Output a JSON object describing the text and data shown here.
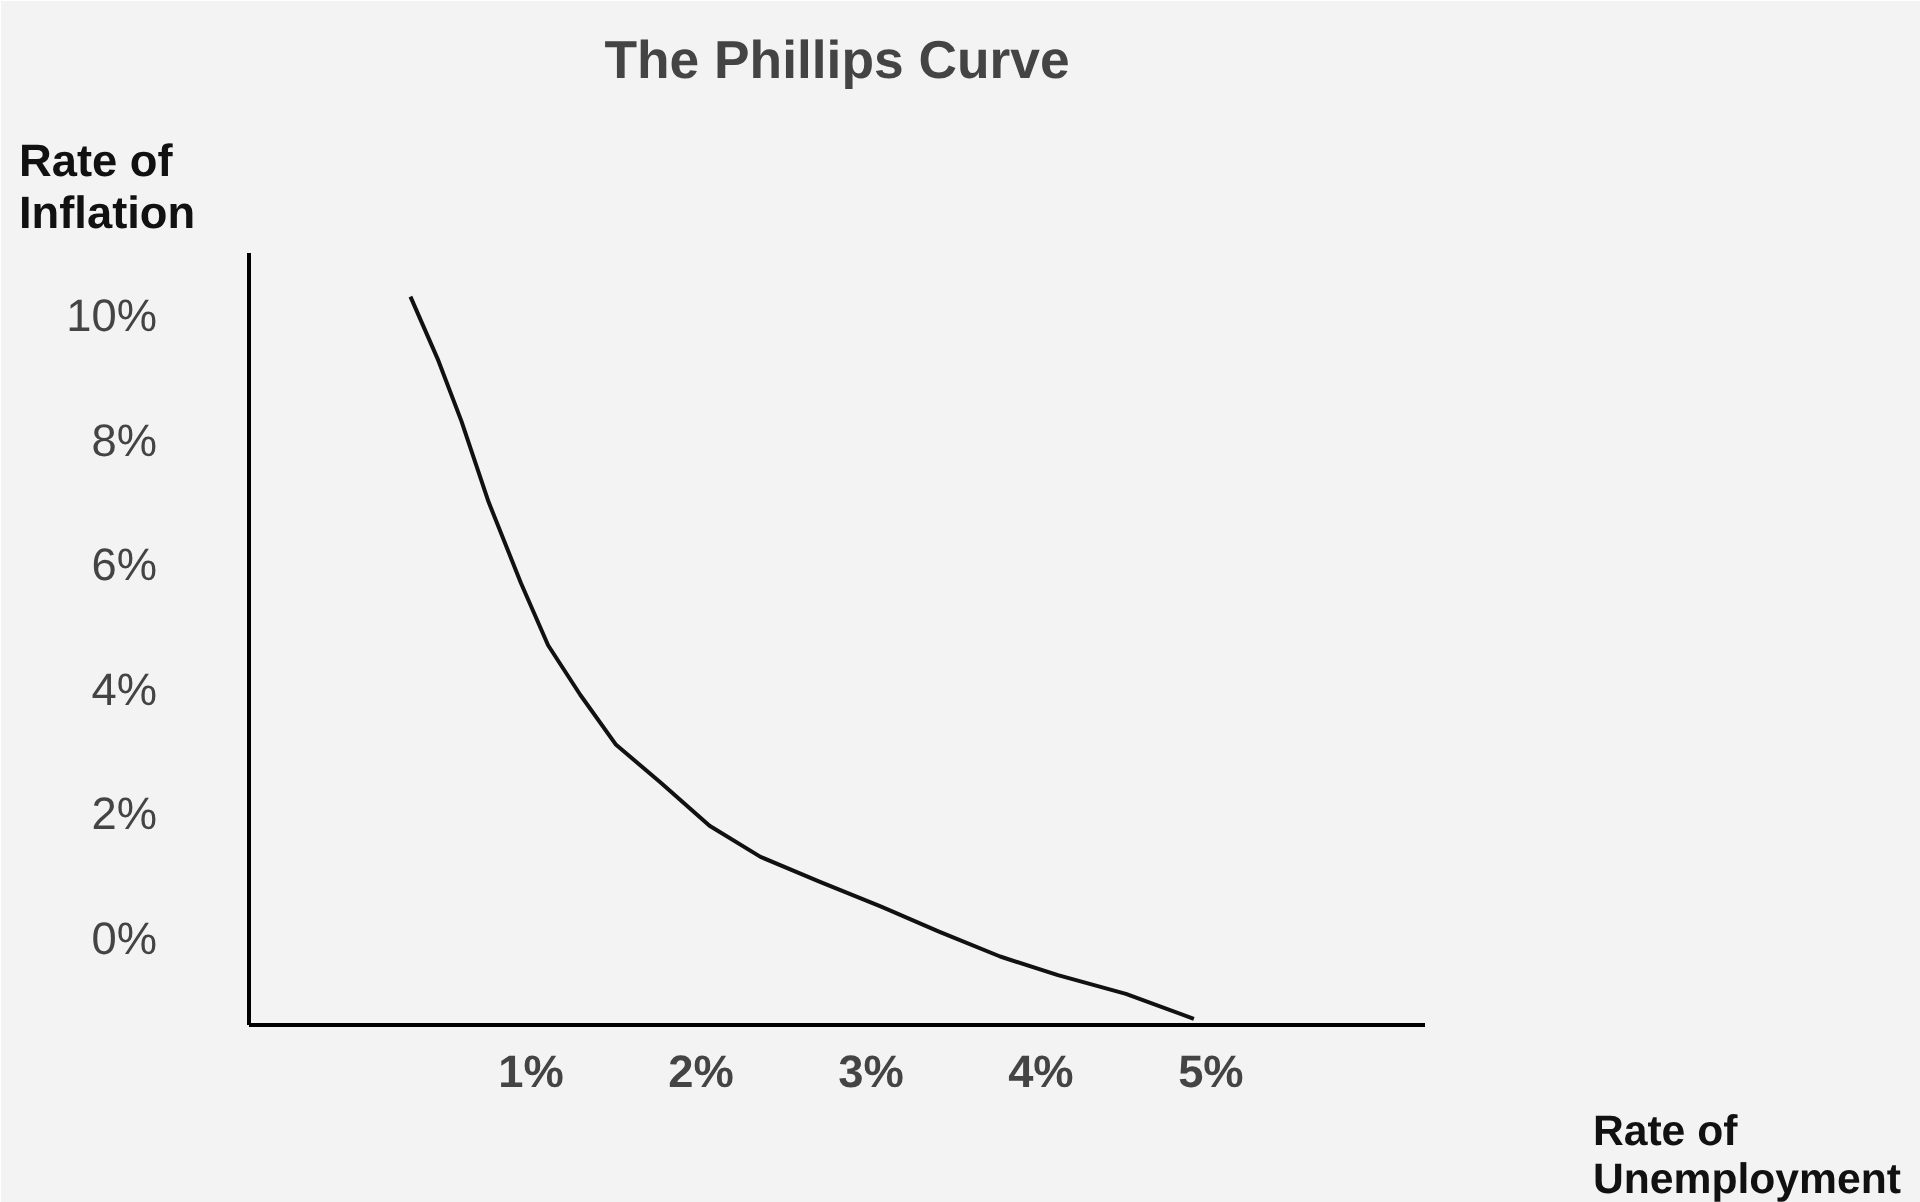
{
  "chart_data": {
    "type": "line",
    "title": "The Phillips Curve",
    "xlabel": "Rate of\nUnemployment",
    "ylabel": "Rate of\nInflation",
    "x": [
      0.29,
      0.45,
      0.59,
      0.75,
      0.94,
      1.1,
      1.29,
      1.5,
      1.76,
      2.05,
      2.35,
      2.7,
      3.06,
      3.4,
      3.76,
      4.1,
      4.5,
      4.9
    ],
    "series": [
      {
        "color": "#111111",
        "values": [
          10.3,
          9.3,
          8.3,
          7.0,
          5.7,
          4.7,
          3.9,
          3.1,
          2.5,
          1.8,
          1.3,
          0.9,
          0.5,
          0.1,
          -0.3,
          -0.6,
          -0.9,
          -1.3
        ]
      }
    ],
    "xlim": [
      -0.66,
      6.26
    ],
    "ylim": [
      -1.4,
      11
    ],
    "xticks": [
      {
        "value": 1,
        "label": "1%"
      },
      {
        "value": 2,
        "label": "2%"
      },
      {
        "value": 3,
        "label": "3%"
      },
      {
        "value": 4,
        "label": "4%"
      },
      {
        "value": 5,
        "label": "5%"
      }
    ],
    "yticks": [
      {
        "value": 0,
        "label": "0%"
      },
      {
        "value": 2,
        "label": "2%"
      },
      {
        "value": 4,
        "label": "4%"
      },
      {
        "value": 6,
        "label": "6%"
      },
      {
        "value": 8,
        "label": "8%"
      },
      {
        "value": 10,
        "label": "10%"
      }
    ],
    "grid": false,
    "marker": "none",
    "line_style": "solid"
  }
}
